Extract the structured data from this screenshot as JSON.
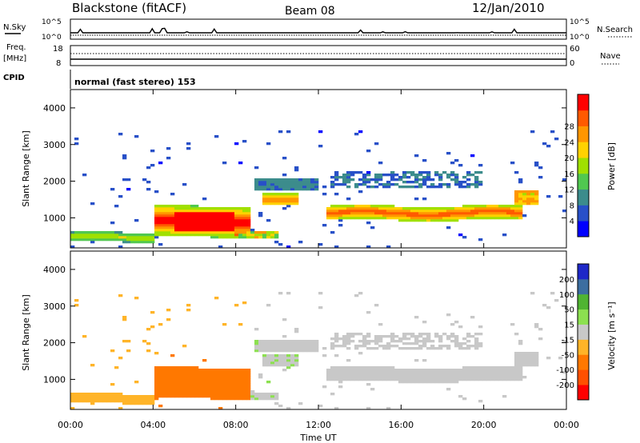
{
  "header": {
    "station": "Blackstone (fitACF)",
    "beam": "Beam 08",
    "date": "12/Jan/2010"
  },
  "noise_panel": {
    "left_label": "N.Sky",
    "right_label": "N.Search",
    "left_ticks": [
      "10^5",
      "10^0"
    ],
    "right_ticks": [
      "10^5",
      "10^0"
    ]
  },
  "freq_panel": {
    "left_label_line1": "Freq.",
    "left_label_line2": "[MHz]",
    "right_label": "Nave",
    "left_ticks": [
      "18",
      "8"
    ],
    "right_ticks": [
      "60",
      "0"
    ]
  },
  "cpid_panel": {
    "label": "CPID",
    "text": "normal (fast stereo) 153"
  },
  "colors": {
    "power": [
      "#0000ff",
      "#2850c8",
      "#3c8c8c",
      "#50c850",
      "#a0e000",
      "#ffd200",
      "#ff9600",
      "#ff5a00",
      "#ff0000"
    ],
    "velocity": [
      "#ff0000",
      "#ff5000",
      "#ff7800",
      "#ffb428",
      "#c8c8c8",
      "#8ce050",
      "#50b432",
      "#3c6ea0",
      "#1e28c8"
    ]
  },
  "chart_data": [
    {
      "type": "heatmap",
      "name": "power",
      "ylabel": "Slant Range [km]",
      "xlabel": "",
      "xlim_hours": [
        0,
        24
      ],
      "ylim": [
        180,
        4500
      ],
      "yticks": [
        "1000",
        "2000",
        "3000",
        "4000"
      ],
      "colorbar_label": "Power [dB]",
      "colorbar_ticks": [
        "4",
        "8",
        "12",
        "16",
        "20",
        "24",
        "28"
      ],
      "clim": [
        0,
        30
      ]
    },
    {
      "type": "heatmap",
      "name": "velocity",
      "ylabel": "Slant Range [km]",
      "xlabel": "Time UT",
      "xlim_hours": [
        0,
        24
      ],
      "ylim": [
        180,
        4500
      ],
      "xticks": [
        "00:00",
        "04:00",
        "08:00",
        "12:00",
        "16:00",
        "20:00",
        "00:00"
      ],
      "yticks": [
        "1000",
        "2000",
        "3000",
        "4000"
      ],
      "colorbar_label": "Velocity [m s⁻¹]",
      "colorbar_ticks": [
        "200",
        "100",
        "50",
        "15",
        "-15",
        "-50",
        "-100",
        "-200"
      ],
      "clim": [
        -250,
        250
      ]
    }
  ]
}
